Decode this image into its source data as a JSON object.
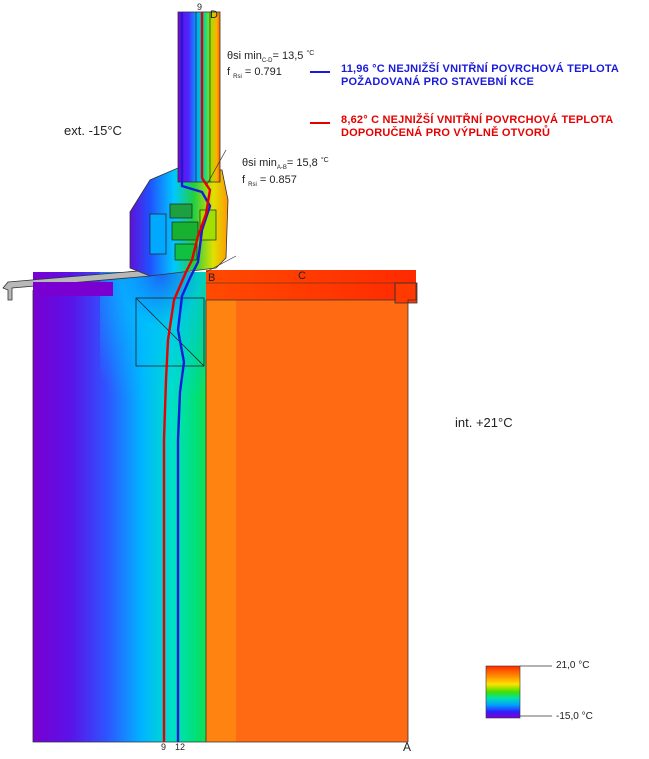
{
  "labels": {
    "exterior": "ext. -15°C",
    "interior": "int. +21°C",
    "point_a": "A",
    "point_b": "B",
    "point_c": "C",
    "point_d": "D",
    "iso_9_top": "9",
    "iso_9_bottom": "9",
    "iso_12_bottom": "12"
  },
  "annotations": {
    "cd": {
      "symbol": "θsi min",
      "sub": "C-D",
      "eq": "= 13,5",
      "unit": "°C",
      "f_label": "f",
      "f_sub": "Rsi",
      "f_value": "= 0.791"
    },
    "ab": {
      "symbol": "θsi min",
      "sub": "A-B",
      "eq": "= 15,8",
      "unit": "°C",
      "f_label": "f",
      "f_sub": "Rsi",
      "f_value": "= 0.857"
    }
  },
  "legend": {
    "blue": {
      "line1": "11,96 °C NEJNIŽŠÍ VNITŘNÍ POVRCHOVÁ TEPLOTA",
      "line2": "POŽADOVANÁ PRO STAVEBNÍ KCE",
      "color": "#1a1adb"
    },
    "red": {
      "line1": "8,62° C NEJNIŽŠÍ VNITŘNÍ POVRCHOVÁ TEPLOTA",
      "line2": "DOPORUČENÁ PRO VÝPLNĚ OTVORŮ",
      "color": "#e60000"
    }
  },
  "scale": {
    "max_label": "21,0 °C",
    "min_label": "-15,0 °C",
    "max_value": 21.0,
    "min_value": -15.0,
    "colors": [
      "#7b00d6",
      "#2a2aff",
      "#00b4ff",
      "#00e8a0",
      "#33e000",
      "#d8f000",
      "#ffcc00",
      "#ff8000",
      "#ff3a00"
    ]
  }
}
